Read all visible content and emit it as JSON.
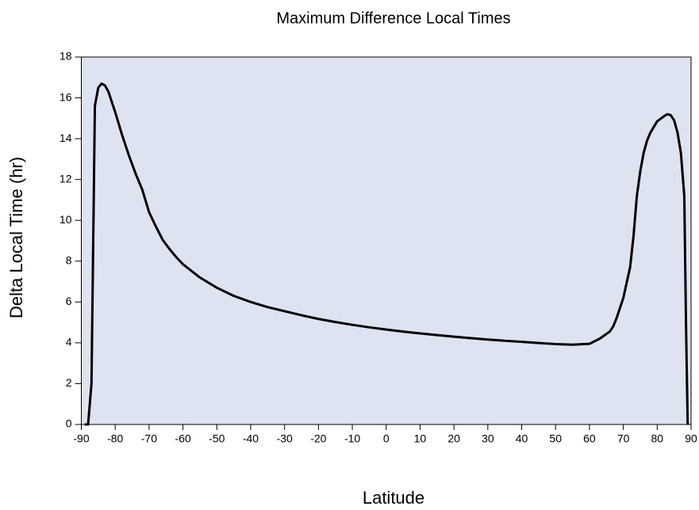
{
  "chart_data": {
    "type": "line",
    "title": "Maximum Difference Local Times",
    "x_label": "Latitude",
    "y_label": "Delta Local Time (hr)",
    "x": [
      -89,
      -88,
      -87,
      -86,
      -85,
      -84,
      -83,
      -82,
      -80,
      -78,
      -76,
      -74,
      -72,
      -70,
      -68,
      -66,
      -64,
      -62,
      -60,
      -55,
      -50,
      -45,
      -40,
      -35,
      -30,
      -25,
      -20,
      -15,
      -10,
      -5,
      0,
      5,
      10,
      15,
      20,
      25,
      30,
      35,
      40,
      45,
      50,
      55,
      60,
      63,
      66,
      67,
      68,
      70,
      72,
      73,
      74,
      75,
      76,
      77,
      78,
      80,
      82,
      83,
      84,
      85,
      86,
      87,
      88,
      88.5,
      89
    ],
    "series": [
      {
        "name": "Delta Local Time",
        "color": "#000000",
        "values": [
          0,
          0,
          2,
          15.6,
          16.5,
          16.7,
          16.6,
          16.3,
          15.3,
          14.2,
          13.2,
          12.3,
          11.5,
          10.4,
          9.7,
          9.05,
          8.6,
          8.2,
          7.85,
          7.2,
          6.7,
          6.3,
          6.0,
          5.75,
          5.55,
          5.35,
          5.17,
          5.02,
          4.88,
          4.76,
          4.65,
          4.55,
          4.46,
          4.38,
          4.3,
          4.23,
          4.16,
          4.1,
          4.05,
          3.99,
          3.94,
          3.91,
          3.95,
          4.2,
          4.55,
          4.8,
          5.2,
          6.2,
          7.7,
          9.2,
          11.2,
          12.4,
          13.3,
          13.9,
          14.3,
          14.85,
          15.1,
          15.2,
          15.15,
          14.9,
          14.3,
          13.3,
          11.2,
          5,
          0
        ]
      }
    ],
    "xlim": [
      -90,
      90
    ],
    "xticks": [
      -90,
      -80,
      -70,
      -60,
      -50,
      -40,
      -30,
      -20,
      -10,
      0,
      10,
      20,
      30,
      40,
      50,
      60,
      70,
      80,
      90
    ],
    "ylim": [
      0,
      18
    ],
    "yticks": [
      0,
      2,
      4,
      6,
      8,
      10,
      12,
      14,
      16,
      18
    ],
    "background": "#dde3f0"
  }
}
